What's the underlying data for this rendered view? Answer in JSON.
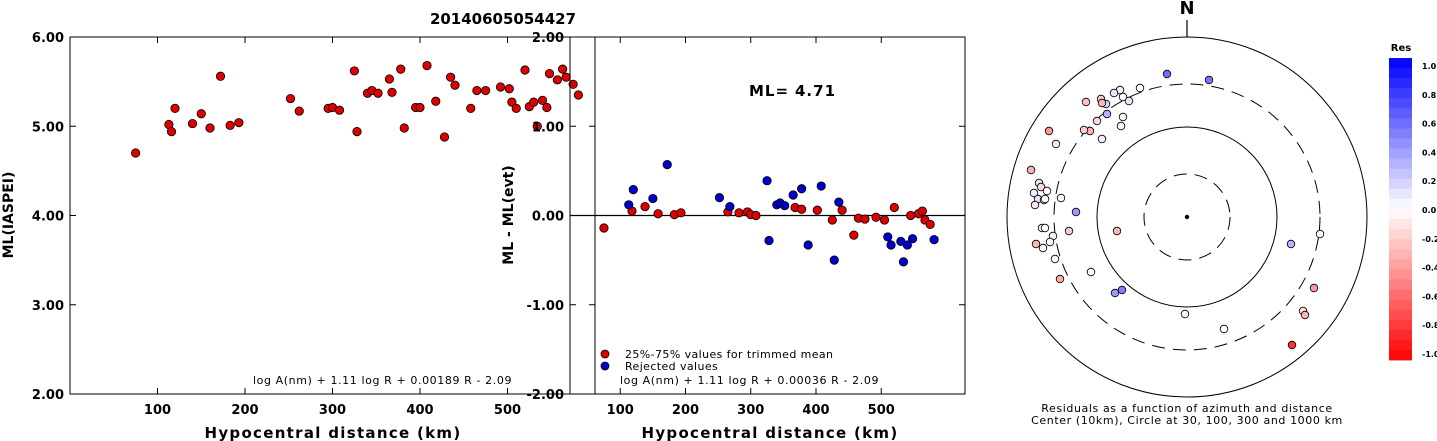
{
  "page_title": "20140605054427",
  "chart_data": [
    {
      "type": "scatter",
      "ylabel": "ML(IASPEI)",
      "xlabel": "Hypocentral distance (km)",
      "xlim": [
        0,
        600
      ],
      "ylim": [
        2.0,
        6.0
      ],
      "x_ticks": [
        100,
        200,
        300,
        400,
        500
      ],
      "y_ticks": [
        "2.00",
        "3.00",
        "4.00",
        "5.00",
        "6.00"
      ],
      "formula": "log A(nm) + 1.11 log R + 0.00189 R - 2.09",
      "colors": {
        "point": "#dd0000"
      },
      "points": [
        [
          75,
          4.7
        ],
        [
          113,
          5.02
        ],
        [
          116,
          4.94
        ],
        [
          120,
          5.2
        ],
        [
          140,
          5.03
        ],
        [
          150,
          5.14
        ],
        [
          160,
          4.98
        ],
        [
          172,
          5.56
        ],
        [
          183,
          5.01
        ],
        [
          193,
          5.04
        ],
        [
          252,
          5.31
        ],
        [
          262,
          5.17
        ],
        [
          295,
          5.2
        ],
        [
          300,
          5.21
        ],
        [
          308,
          5.18
        ],
        [
          325,
          5.62
        ],
        [
          328,
          4.94
        ],
        [
          340,
          5.37
        ],
        [
          345,
          5.4
        ],
        [
          352,
          5.37
        ],
        [
          365,
          5.53
        ],
        [
          368,
          5.38
        ],
        [
          378,
          5.64
        ],
        [
          382,
          4.98
        ],
        [
          395,
          5.21
        ],
        [
          400,
          5.21
        ],
        [
          408,
          5.68
        ],
        [
          418,
          5.28
        ],
        [
          428,
          4.88
        ],
        [
          435,
          5.55
        ],
        [
          440,
          5.46
        ],
        [
          458,
          5.2
        ],
        [
          465,
          5.4
        ],
        [
          475,
          5.4
        ],
        [
          492,
          5.44
        ],
        [
          502,
          5.42
        ],
        [
          505,
          5.27
        ],
        [
          510,
          5.2
        ],
        [
          520,
          5.63
        ],
        [
          525,
          5.22
        ],
        [
          530,
          5.27
        ],
        [
          534,
          5.0
        ],
        [
          540,
          5.29
        ],
        [
          545,
          5.21
        ],
        [
          548,
          5.59
        ],
        [
          557,
          5.52
        ],
        [
          563,
          5.64
        ],
        [
          567,
          5.55
        ],
        [
          575,
          5.47
        ],
        [
          581,
          5.35
        ]
      ]
    },
    {
      "type": "scatter",
      "ylabel": "ML - ML(evt)",
      "xlabel": "Hypocentral distance (km)",
      "xlim": [
        0,
        600
      ],
      "ylim": [
        -2.0,
        2.0
      ],
      "x_ticks": [
        100,
        200,
        300,
        400,
        500
      ],
      "y_ticks": [
        "-2.00",
        "-1.00",
        "0.00",
        "1.00",
        "2.00"
      ],
      "ml_label": "ML=",
      "ml_value": "4.71",
      "formula": "log A(nm) + 1.11 log R + 0.00036 R - 2.09",
      "legend": [
        {
          "label": "25%-75% values for trimmed mean",
          "color": "#dd0000"
        },
        {
          "label": "Rejected values",
          "color": "#0000cc"
        }
      ],
      "series": [
        {
          "name": "25%-75% values for trimmed mean",
          "color": "#dd0000",
          "points": [
            [
              75,
              -0.14
            ],
            [
              118,
              0.05
            ],
            [
              138,
              0.1
            ],
            [
              158,
              0.02
            ],
            [
              183,
              0.01
            ],
            [
              193,
              0.03
            ],
            [
              265,
              0.04
            ],
            [
              282,
              0.03
            ],
            [
              295,
              0.04
            ],
            [
              300,
              0.01
            ],
            [
              308,
              0.0
            ],
            [
              368,
              0.09
            ],
            [
              378,
              0.07
            ],
            [
              402,
              0.06
            ],
            [
              425,
              -0.05
            ],
            [
              440,
              0.06
            ],
            [
              458,
              -0.22
            ],
            [
              465,
              -0.03
            ],
            [
              475,
              -0.04
            ],
            [
              492,
              -0.02
            ],
            [
              505,
              -0.05
            ],
            [
              520,
              0.09
            ],
            [
              545,
              0.0
            ],
            [
              557,
              0.02
            ],
            [
              563,
              0.05
            ],
            [
              567,
              -0.05
            ],
            [
              575,
              -0.1
            ]
          ]
        },
        {
          "name": "Rejected values",
          "color": "#0000cc",
          "points": [
            [
              113,
              0.12
            ],
            [
              120,
              0.29
            ],
            [
              150,
              0.19
            ],
            [
              172,
              0.57
            ],
            [
              252,
              0.2
            ],
            [
              268,
              0.1
            ],
            [
              325,
              0.39
            ],
            [
              328,
              -0.28
            ],
            [
              340,
              0.12
            ],
            [
              345,
              0.14
            ],
            [
              352,
              0.11
            ],
            [
              365,
              0.23
            ],
            [
              378,
              0.3
            ],
            [
              388,
              -0.33
            ],
            [
              408,
              0.33
            ],
            [
              428,
              -0.5
            ],
            [
              435,
              0.15
            ],
            [
              510,
              -0.24
            ],
            [
              515,
              -0.33
            ],
            [
              530,
              -0.29
            ],
            [
              534,
              -0.52
            ],
            [
              540,
              -0.33
            ],
            [
              548,
              -0.26
            ],
            [
              581,
              -0.27
            ]
          ]
        }
      ]
    },
    {
      "type": "scatter",
      "north_label": "N",
      "caption_line1": "Residuals as a function of azimuth and distance",
      "caption_line2": "Center (10km), Circle at 30, 100, 300 and 1000 km",
      "colorbar": {
        "title": "Res",
        "tick_labels": [
          "1.0",
          "0.8",
          "0.6",
          "0.4",
          "0.2",
          "0.0",
          "-0.2",
          "-0.4",
          "-0.6",
          "-0.8",
          "-1.0"
        ],
        "max_color": "#0000ff",
        "zero_color": "#ffffff",
        "min_color": "#ff0000"
      },
      "rings": [
        {
          "radius_km": 30,
          "style": "dashed"
        },
        {
          "radius_km": 100,
          "style": "solid"
        },
        {
          "radius_km": 300,
          "style": "dashed"
        },
        {
          "radius_km": 1000,
          "style": "solid"
        }
      ],
      "stations_dx_dy": [
        [
          -20,
          143,
          0.57
        ],
        [
          22,
          137,
          0.53
        ],
        [
          -47,
          129,
          -0.02
        ],
        [
          -64,
          120,
          0.0
        ],
        [
          -67,
          127,
          0.05
        ],
        [
          -73,
          124,
          0.1
        ],
        [
          -58,
          116,
          0.08
        ],
        [
          -81,
          113,
          0.15
        ],
        [
          -86,
          118,
          -0.2
        ],
        [
          -101,
          115,
          -0.25
        ],
        [
          -85,
          114,
          -0.3
        ],
        [
          -80,
          103,
          0.3
        ],
        [
          -64,
          100,
          0.02
        ],
        [
          -66,
          91,
          -0.02
        ],
        [
          -90,
          96,
          -0.15
        ],
        [
          -97,
          86,
          -0.3
        ],
        [
          -103,
          87,
          -0.2
        ],
        [
          -85,
          78,
          0.05
        ],
        [
          -138,
          86,
          -0.4
        ],
        [
          -131,
          73,
          -0.1
        ],
        [
          -156,
          47,
          -0.3
        ],
        [
          -148,
          34,
          0.1
        ],
        [
          -146,
          30,
          -0.15
        ],
        [
          -140,
          26,
          0.0
        ],
        [
          -153,
          24,
          0.05
        ],
        [
          -149,
          18,
          0.1
        ],
        [
          -143,
          17,
          0.0
        ],
        [
          -152,
          12,
          -0.1
        ],
        [
          -142,
          18,
          0.0
        ],
        [
          -126,
          19,
          0.02
        ],
        [
          -111,
          5,
          0.4
        ],
        [
          -145,
          -11,
          0.05
        ],
        [
          -142,
          -11,
          0.0
        ],
        [
          -134,
          -19,
          -0.05
        ],
        [
          -137,
          -25,
          0.0
        ],
        [
          -151,
          -27,
          -0.3
        ],
        [
          -144,
          -31,
          0.02
        ],
        [
          -132,
          -42,
          0.0
        ],
        [
          -118,
          -14,
          -0.2
        ],
        [
          -96,
          -55,
          0.0
        ],
        [
          -127,
          -62,
          -0.35
        ],
        [
          -70,
          -14,
          -0.3
        ],
        [
          -72,
          -76,
          0.4
        ],
        [
          -65,
          -73,
          0.5
        ],
        [
          -2,
          -97,
          0.02
        ],
        [
          37,
          -112,
          0.0
        ],
        [
          104,
          -27,
          0.3
        ],
        [
          133,
          -17,
          0.0
        ],
        [
          127,
          -71,
          -0.4
        ],
        [
          116,
          -94,
          -0.1
        ],
        [
          118,
          -98,
          -0.3
        ],
        [
          105,
          -128,
          -0.8
        ]
      ]
    }
  ]
}
